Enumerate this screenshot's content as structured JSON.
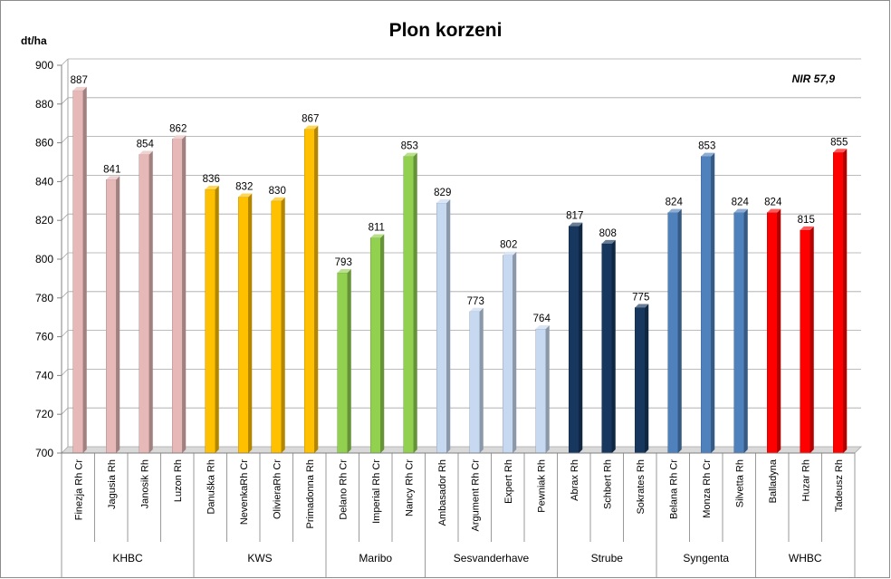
{
  "chart_data": {
    "type": "bar",
    "title": "Plon korzeni",
    "ylabel": "dt/ha",
    "annotation": "NIR 57,9",
    "ylim": [
      700,
      900
    ],
    "ytick_step": 20,
    "grid": true,
    "categories": [
      "Finezja Rh Cr",
      "Jagusia Rh",
      "Janosik Rh",
      "Luzon Rh",
      "Danuška Rh",
      "NevenkaRh Cr",
      "OlivieraRh Cr",
      "Primadonna Rh",
      "Delano Rh Cr",
      "Imperial Rh Cr",
      "Nancy Rh Cr",
      "Ambasador Rh",
      "Argument Rh Cr",
      "Expert Rh",
      "Pewniak Rh",
      "Abrax Rh",
      "Schbert Rh",
      "Sokrates Rh",
      "Belana Rh Cr",
      "Monza Rh Cr",
      "Silvetta Rh",
      "Balladyna",
      "Huzar Rh",
      "Tadeusz Rh"
    ],
    "values": [
      887,
      841,
      854,
      862,
      836,
      832,
      830,
      867,
      793,
      811,
      853,
      829,
      773,
      802,
      764,
      817,
      808,
      775,
      824,
      853,
      824,
      824,
      815,
      855
    ],
    "groups": [
      {
        "name": "KHBC",
        "count": 4,
        "color": "#e6b8b7"
      },
      {
        "name": "KWS",
        "count": 4,
        "color": "#ffc000"
      },
      {
        "name": "Maribo",
        "count": 3,
        "color": "#92d050"
      },
      {
        "name": "Sesvanderhave",
        "count": 4,
        "color": "#c6d9f1"
      },
      {
        "name": "Strube",
        "count": 3,
        "color": "#17375e"
      },
      {
        "name": "Syngenta",
        "count": 3,
        "color": "#4f81bd"
      },
      {
        "name": "WHBC",
        "count": 3,
        "color": "#ff0000"
      }
    ]
  }
}
